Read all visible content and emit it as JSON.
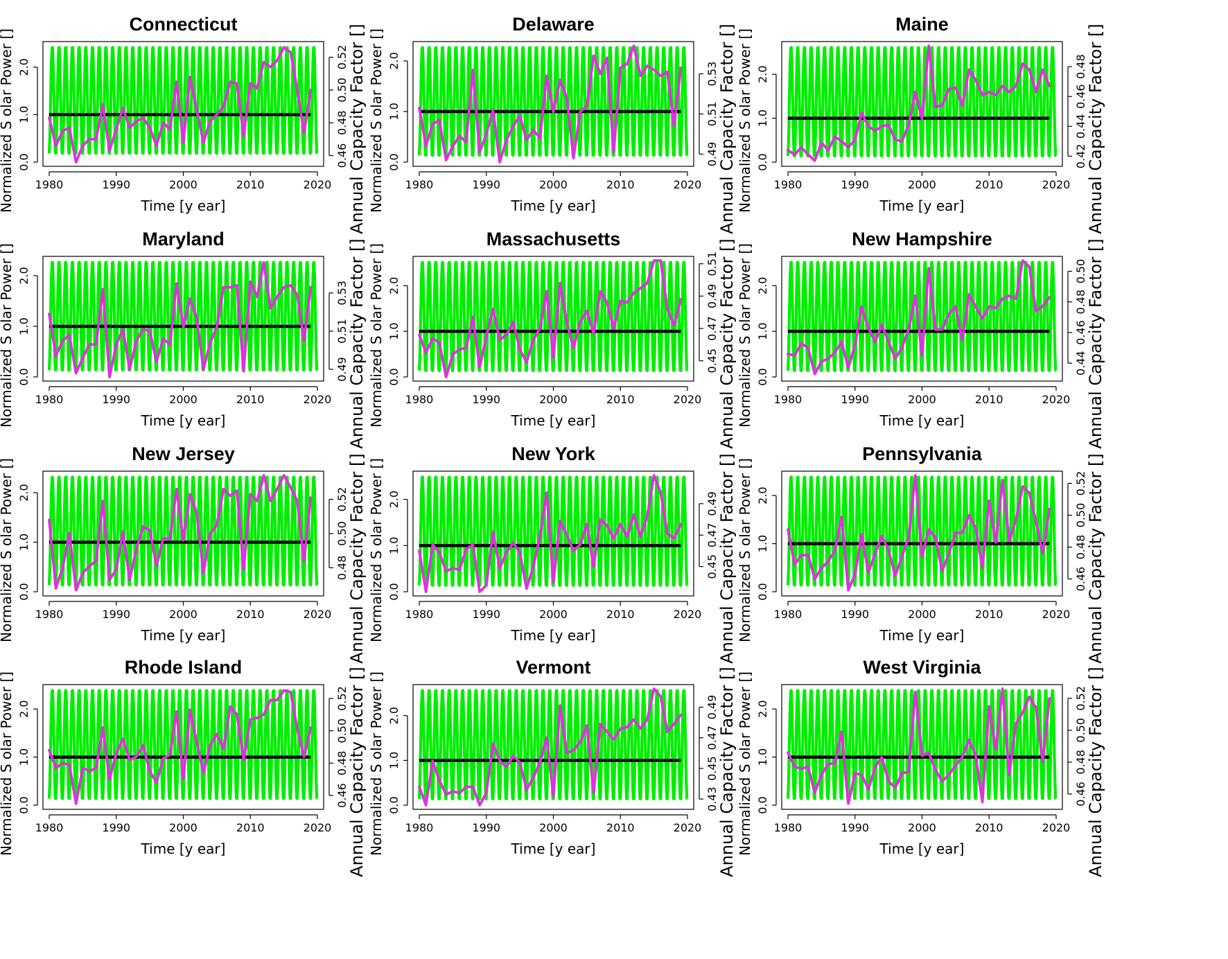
{
  "figure": {
    "xlabel": "Time [y ear]",
    "ylabel_left": "Normalized S olar Power []",
    "ylabel_right": "Annual Capacity Factor []",
    "colors": {
      "monthly_series": "#00ee00",
      "annual_series": "#e030e0",
      "reference_line": "#000000"
    }
  },
  "chart_data": [
    {
      "type": "line",
      "title": "Connecticut",
      "xlim": [
        1980,
        2020
      ],
      "x_ticks": [
        "1980",
        "1990",
        "2000",
        "2010",
        "2020"
      ],
      "left_ylim": [
        0,
        2.45
      ],
      "left_ticks": [
        "0.0",
        "1.0",
        "2.0"
      ],
      "right_ylim": [
        0.456,
        0.527
      ],
      "right_ticks": [
        "0.46",
        "0.48",
        "0.50",
        "0.52"
      ],
      "monthly_range": [
        0.15,
        2.45
      ],
      "reference_value": 1.0,
      "annual_start_year": 1980,
      "annual_values": [
        0.483,
        0.466,
        0.475,
        0.477,
        0.456,
        0.466,
        0.47,
        0.47,
        0.491,
        0.463,
        0.476,
        0.489,
        0.477,
        0.481,
        0.483,
        0.477,
        0.466,
        0.48,
        0.476,
        0.505,
        0.468,
        0.508,
        0.488,
        0.468,
        0.481,
        0.485,
        0.49,
        0.505,
        0.504,
        0.472,
        0.504,
        0.501,
        0.517,
        0.514,
        0.518,
        0.526,
        0.523,
        0.5,
        0.474,
        0.5
      ]
    },
    {
      "type": "line",
      "title": "Delaware",
      "xlim": [
        1980,
        2020
      ],
      "x_ticks": [
        "1980",
        "1990",
        "2000",
        "2010",
        "2020"
      ],
      "left_ylim": [
        0,
        2.3
      ],
      "left_ticks": [
        "0.0",
        "1.0",
        "2.0"
      ],
      "right_ylim": [
        0.486,
        0.544
      ],
      "right_ticks": [
        "0.49",
        "0.51",
        "0.53"
      ],
      "monthly_range": [
        0.1,
        2.3
      ],
      "reference_value": 1.0,
      "annual_start_year": 1980,
      "annual_values": [
        0.513,
        0.494,
        0.505,
        0.507,
        0.487,
        0.494,
        0.499,
        0.496,
        0.532,
        0.491,
        0.5,
        0.512,
        0.486,
        0.497,
        0.504,
        0.509,
        0.497,
        0.502,
        0.498,
        0.529,
        0.511,
        0.527,
        0.518,
        0.488,
        0.511,
        0.514,
        0.539,
        0.53,
        0.538,
        0.491,
        0.533,
        0.535,
        0.544,
        0.529,
        0.534,
        0.532,
        0.529,
        0.531,
        0.504,
        0.533
      ]
    },
    {
      "type": "line",
      "title": "Maine",
      "xlim": [
        1980,
        2020
      ],
      "x_ticks": [
        "1980",
        "1990",
        "2000",
        "2010",
        "2020"
      ],
      "left_ylim": [
        0,
        2.65
      ],
      "left_ticks": [
        "0.0",
        "1.0",
        "2.0"
      ],
      "right_ylim": [
        0.416,
        0.494
      ],
      "right_ticks": [
        "0.42",
        "0.44",
        "0.46",
        "0.48"
      ],
      "monthly_range": [
        0.1,
        2.65
      ],
      "reference_value": 1.0,
      "annual_start_year": 1980,
      "annual_values": [
        0.424,
        0.421,
        0.426,
        0.421,
        0.417,
        0.429,
        0.424,
        0.433,
        0.43,
        0.426,
        0.431,
        0.449,
        0.44,
        0.437,
        0.44,
        0.441,
        0.431,
        0.43,
        0.441,
        0.463,
        0.445,
        0.494,
        0.453,
        0.454,
        0.465,
        0.466,
        0.454,
        0.478,
        0.471,
        0.461,
        0.463,
        0.461,
        0.467,
        0.463,
        0.467,
        0.482,
        0.478,
        0.463,
        0.478,
        0.467
      ]
    },
    {
      "type": "line",
      "title": "Maryland",
      "xlim": [
        1980,
        2020
      ],
      "x_ticks": [
        "1980",
        "1990",
        "2000",
        "2010",
        "2020"
      ],
      "left_ylim": [
        0,
        2.3
      ],
      "left_ticks": [
        "0.0",
        "1.0",
        "2.0"
      ],
      "right_ylim": [
        0.486,
        0.547
      ],
      "right_ticks": [
        "0.49",
        "0.51",
        "0.53"
      ],
      "monthly_range": [
        0.1,
        2.3
      ],
      "reference_value": 1.0,
      "annual_start_year": 1980,
      "annual_values": [
        0.519,
        0.497,
        0.505,
        0.508,
        0.488,
        0.496,
        0.503,
        0.503,
        0.532,
        0.486,
        0.503,
        0.511,
        0.49,
        0.505,
        0.511,
        0.51,
        0.494,
        0.506,
        0.503,
        0.535,
        0.512,
        0.527,
        0.517,
        0.49,
        0.504,
        0.512,
        0.533,
        0.533,
        0.534,
        0.489,
        0.536,
        0.528,
        0.546,
        0.522,
        0.528,
        0.533,
        0.534,
        0.529,
        0.505,
        0.533
      ]
    },
    {
      "type": "line",
      "title": "Massachusetts",
      "xlim": [
        1980,
        2020
      ],
      "x_ticks": [
        "1980",
        "1990",
        "2000",
        "2010",
        "2020"
      ],
      "left_ylim": [
        0,
        2.55
      ],
      "left_ticks": [
        "0.0",
        "1.0",
        "2.0"
      ],
      "right_ylim": [
        0.44,
        0.512
      ],
      "right_ticks": [
        "0.45",
        "0.47",
        "0.49",
        "0.51"
      ],
      "monthly_range": [
        0.1,
        2.55
      ],
      "reference_value": 1.0,
      "annual_start_year": 1980,
      "annual_values": [
        0.466,
        0.455,
        0.464,
        0.461,
        0.44,
        0.454,
        0.457,
        0.458,
        0.477,
        0.446,
        0.465,
        0.482,
        0.463,
        0.466,
        0.474,
        0.457,
        0.449,
        0.463,
        0.47,
        0.493,
        0.452,
        0.498,
        0.474,
        0.458,
        0.474,
        0.481,
        0.467,
        0.493,
        0.486,
        0.47,
        0.487,
        0.486,
        0.492,
        0.495,
        0.498,
        0.512,
        0.512,
        0.482,
        0.472,
        0.488
      ]
    },
    {
      "type": "line",
      "title": "New Hampshire",
      "xlim": [
        1980,
        2020
      ],
      "x_ticks": [
        "1980",
        "1990",
        "2000",
        "2010",
        "2020"
      ],
      "left_ylim": [
        0,
        2.55
      ],
      "left_ticks": [
        "0.0",
        "1.0",
        "2.0"
      ],
      "right_ylim": [
        0.431,
        0.507
      ],
      "right_ticks": [
        "0.44",
        "0.46",
        "0.48",
        "0.50"
      ],
      "monthly_range": [
        0.1,
        2.55
      ],
      "reference_value": 1.0,
      "annual_start_year": 1980,
      "annual_values": [
        0.446,
        0.445,
        0.453,
        0.45,
        0.433,
        0.441,
        0.443,
        0.447,
        0.454,
        0.437,
        0.452,
        0.477,
        0.463,
        0.454,
        0.465,
        0.454,
        0.443,
        0.45,
        0.462,
        0.484,
        0.445,
        0.502,
        0.462,
        0.462,
        0.472,
        0.477,
        0.455,
        0.485,
        0.477,
        0.469,
        0.477,
        0.476,
        0.482,
        0.484,
        0.482,
        0.507,
        0.503,
        0.474,
        0.477,
        0.483
      ]
    },
    {
      "type": "line",
      "title": "New Jersey",
      "xlim": [
        1980,
        2020
      ],
      "x_ticks": [
        "1980",
        "1990",
        "2000",
        "2010",
        "2020"
      ],
      "left_ylim": [
        0,
        2.35
      ],
      "left_ticks": [
        "0.0",
        "1.0",
        "2.0"
      ],
      "right_ylim": [
        0.466,
        0.534
      ],
      "right_ticks": [
        "0.48",
        "0.50",
        "0.52"
      ],
      "monthly_range": [
        0.1,
        2.35
      ],
      "reference_value": 1.0,
      "annual_start_year": 1980,
      "annual_values": [
        0.508,
        0.468,
        0.48,
        0.5,
        0.467,
        0.477,
        0.481,
        0.484,
        0.519,
        0.473,
        0.479,
        0.501,
        0.473,
        0.491,
        0.504,
        0.502,
        0.481,
        0.497,
        0.497,
        0.526,
        0.496,
        0.523,
        0.512,
        0.477,
        0.5,
        0.505,
        0.526,
        0.522,
        0.525,
        0.479,
        0.523,
        0.519,
        0.534,
        0.519,
        0.526,
        0.534,
        0.527,
        0.519,
        0.484,
        0.521
      ]
    },
    {
      "type": "line",
      "title": "New York",
      "xlim": [
        1980,
        2020
      ],
      "x_ticks": [
        "1980",
        "1990",
        "2000",
        "2010",
        "2020"
      ],
      "left_ylim": [
        0,
        2.52
      ],
      "left_ticks": [
        "0.0",
        "1.0",
        "2.0"
      ],
      "right_ylim": [
        0.434,
        0.508
      ],
      "right_ticks": [
        "0.45",
        "0.47",
        "0.49"
      ],
      "monthly_range": [
        0.1,
        2.52
      ],
      "reference_value": 1.0,
      "annual_start_year": 1980,
      "annual_values": [
        0.46,
        0.434,
        0.464,
        0.459,
        0.447,
        0.449,
        0.448,
        0.461,
        0.464,
        0.434,
        0.438,
        0.472,
        0.449,
        0.459,
        0.465,
        0.459,
        0.436,
        0.45,
        0.469,
        0.497,
        0.44,
        0.479,
        0.47,
        0.46,
        0.464,
        0.477,
        0.45,
        0.48,
        0.476,
        0.468,
        0.477,
        0.469,
        0.483,
        0.469,
        0.482,
        0.508,
        0.497,
        0.471,
        0.468,
        0.477
      ]
    },
    {
      "type": "line",
      "title": "Pennsylvania",
      "xlim": [
        1980,
        2020
      ],
      "x_ticks": [
        "1980",
        "1990",
        "2000",
        "2010",
        "2020"
      ],
      "left_ylim": [
        0,
        2.42
      ],
      "left_ticks": [
        "0.0",
        "1.0",
        "2.0"
      ],
      "right_ylim": [
        0.452,
        0.525
      ],
      "right_ticks": [
        "0.46",
        "0.48",
        "0.50",
        "0.52"
      ],
      "monthly_range": [
        0.1,
        2.42
      ],
      "reference_value": 1.0,
      "annual_start_year": 1980,
      "annual_values": [
        0.491,
        0.469,
        0.475,
        0.475,
        0.46,
        0.467,
        0.471,
        0.478,
        0.499,
        0.453,
        0.463,
        0.488,
        0.464,
        0.476,
        0.487,
        0.478,
        0.462,
        0.474,
        0.486,
        0.525,
        0.474,
        0.491,
        0.486,
        0.465,
        0.476,
        0.489,
        0.489,
        0.5,
        0.492,
        0.467,
        0.509,
        0.483,
        0.522,
        0.484,
        0.497,
        0.518,
        0.514,
        0.496,
        0.476,
        0.504
      ]
    },
    {
      "type": "line",
      "title": "Rhode Island",
      "xlim": [
        1980,
        2020
      ],
      "x_ticks": [
        "1980",
        "1990",
        "2000",
        "2010",
        "2020"
      ],
      "left_ylim": [
        0,
        2.42
      ],
      "left_ticks": [
        "0.0",
        "1.0",
        "2.0"
      ],
      "right_ylim": [
        0.454,
        0.526
      ],
      "right_ticks": [
        "0.46",
        "0.48",
        "0.50",
        "0.52"
      ],
      "monthly_range": [
        0.1,
        2.42
      ],
      "reference_value": 1.0,
      "annual_start_year": 1980,
      "annual_values": [
        0.488,
        0.477,
        0.48,
        0.479,
        0.455,
        0.477,
        0.475,
        0.477,
        0.502,
        0.47,
        0.486,
        0.495,
        0.482,
        0.484,
        0.491,
        0.475,
        0.468,
        0.483,
        0.485,
        0.512,
        0.47,
        0.513,
        0.493,
        0.474,
        0.491,
        0.498,
        0.489,
        0.515,
        0.51,
        0.482,
        0.507,
        0.508,
        0.51,
        0.519,
        0.519,
        0.525,
        0.524,
        0.501,
        0.484,
        0.502
      ]
    },
    {
      "type": "line",
      "title": "Vermont",
      "xlim": [
        1980,
        2020
      ],
      "x_ticks": [
        "1980",
        "1990",
        "2000",
        "2010",
        "2020"
      ],
      "left_ylim": [
        0,
        2.6
      ],
      "left_ticks": [
        "0.0",
        "1.0",
        "2.0"
      ],
      "right_ylim": [
        0.426,
        0.502
      ],
      "right_ticks": [
        "0.43",
        "0.45",
        "0.47",
        "0.49"
      ],
      "monthly_range": [
        0.1,
        2.6
      ],
      "reference_value": 1.0,
      "annual_start_year": 1980,
      "annual_values": [
        0.438,
        0.426,
        0.455,
        0.442,
        0.433,
        0.435,
        0.434,
        0.438,
        0.438,
        0.426,
        0.434,
        0.466,
        0.455,
        0.451,
        0.458,
        0.454,
        0.436,
        0.444,
        0.454,
        0.47,
        0.432,
        0.491,
        0.46,
        0.462,
        0.467,
        0.478,
        0.434,
        0.479,
        0.474,
        0.469,
        0.476,
        0.477,
        0.482,
        0.476,
        0.482,
        0.502,
        0.497,
        0.474,
        0.479,
        0.485
      ]
    },
    {
      "type": "line",
      "title": "West Virginia",
      "xlim": [
        1980,
        2020
      ],
      "x_ticks": [
        "1980",
        "1990",
        "2000",
        "2010",
        "2020"
      ],
      "left_ylim": [
        0,
        2.42
      ],
      "left_ticks": [
        "0.0",
        "1.0",
        "2.0"
      ],
      "right_ylim": [
        0.453,
        0.526
      ],
      "right_ticks": [
        "0.46",
        "0.48",
        "0.50",
        "0.52"
      ],
      "monthly_range": [
        0.1,
        2.42
      ],
      "reference_value": 1.0,
      "annual_start_year": 1980,
      "annual_values": [
        0.486,
        0.477,
        0.476,
        0.477,
        0.461,
        0.472,
        0.479,
        0.479,
        0.499,
        0.454,
        0.473,
        0.472,
        0.463,
        0.477,
        0.483,
        0.468,
        0.464,
        0.473,
        0.474,
        0.524,
        0.484,
        0.486,
        0.475,
        0.468,
        0.472,
        0.478,
        0.483,
        0.494,
        0.484,
        0.455,
        0.515,
        0.488,
        0.526,
        0.472,
        0.504,
        0.511,
        0.521,
        0.514,
        0.48,
        0.52
      ]
    }
  ]
}
